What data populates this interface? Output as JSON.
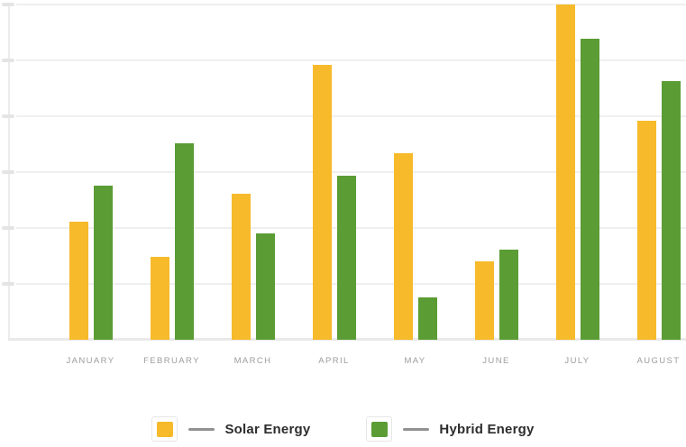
{
  "chart_data": {
    "type": "bar",
    "title": "",
    "xlabel": "",
    "ylabel": "",
    "categories": [
      "JANUARY",
      "FEBRUARY",
      "MARCH",
      "APRIL",
      "MAY",
      "JUNE",
      "JULY",
      "AUGUST"
    ],
    "series": [
      {
        "name": "Solar Energy",
        "color": "#F6BA2B",
        "values": [
          2.12,
          1.48,
          2.62,
          4.92,
          3.34,
          1.4,
          6.0,
          3.92
        ]
      },
      {
        "name": "Hybrid Energy",
        "color": "#5B9C35",
        "values": [
          2.75,
          3.52,
          1.9,
          2.94,
          0.76,
          1.62,
          5.39,
          4.63
        ]
      }
    ],
    "ylim": [
      0,
      6
    ],
    "y_gridline_interval": 1,
    "y_tick_labels_visible": false,
    "grid": "horizontal",
    "legend_position": "bottom"
  },
  "legend": {
    "items": [
      {
        "label": "Solar Energy",
        "color": "#F6BA2B"
      },
      {
        "label": "Hybrid Energy",
        "color": "#5B9C35"
      }
    ]
  }
}
